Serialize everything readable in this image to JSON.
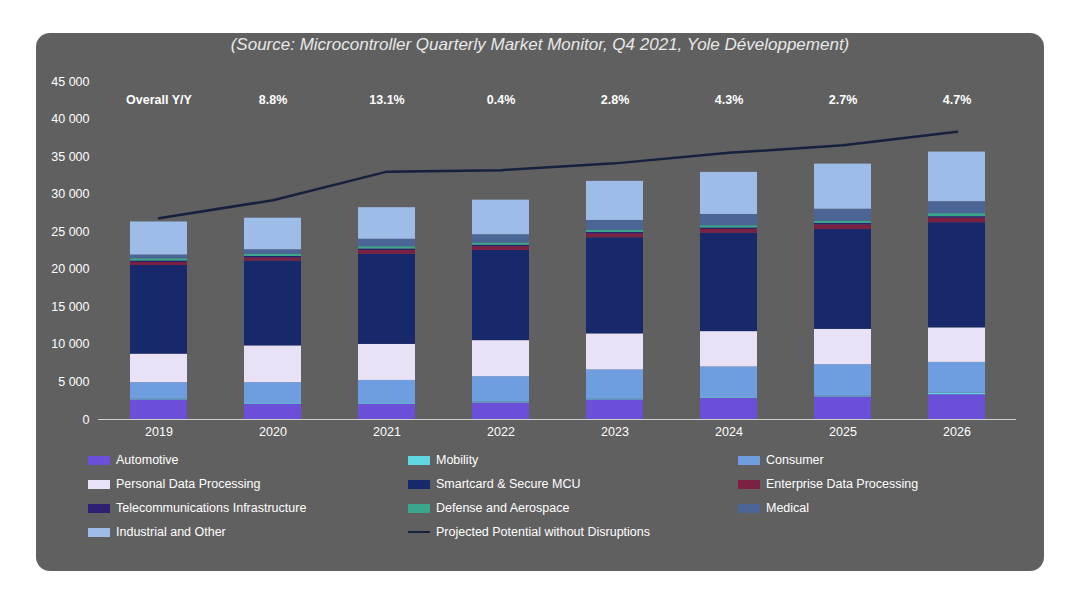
{
  "chart_data": {
    "type": "bar",
    "title": "(Source: Microcontroller Quarterly Market Monitor, Q4 2021, Yole Développement)",
    "stacked": true,
    "grid": false,
    "legend": "bottom",
    "categories": [
      "2019",
      "2020",
      "2021",
      "2022",
      "2023",
      "2024",
      "2025",
      "2026"
    ],
    "ylim": [
      0,
      45000
    ],
    "yticks": [
      0,
      {
        "value": 5000,
        "label": "5 000"
      },
      {
        "value": 10000,
        "label": "10 000"
      },
      {
        "value": 15000,
        "label": "15 000"
      },
      {
        "value": 20000,
        "label": "20 000"
      },
      {
        "value": 25000,
        "label": "25 000"
      },
      {
        "value": 30000,
        "label": "30 000"
      },
      {
        "value": 35000,
        "label": "35 000"
      },
      {
        "value": 40000,
        "label": "40 000"
      },
      {
        "value": 45000,
        "label": "45 000"
      }
    ],
    "annotations": [
      {
        "x": "2019",
        "text": "Overall Y/Y"
      },
      {
        "x": "2020",
        "text": "8.8%"
      },
      {
        "x": "2021",
        "text": "13.1%"
      },
      {
        "x": "2022",
        "text": "0.4%"
      },
      {
        "x": "2023",
        "text": "2.8%"
      },
      {
        "x": "2024",
        "text": "4.3%"
      },
      {
        "x": "2025",
        "text": "2.7%"
      },
      {
        "x": "2026",
        "text": "4.7%"
      }
    ],
    "series": [
      {
        "name": "Automotive",
        "color": "#6b4fd8",
        "values": [
          2600,
          2000,
          2000,
          2200,
          2600,
          2800,
          3000,
          3300
        ]
      },
      {
        "name": "Mobility",
        "color": "#5fd6e0",
        "values": [
          100,
          100,
          100,
          100,
          100,
          100,
          100,
          200
        ]
      },
      {
        "name": "Consumer",
        "color": "#6e9de0",
        "values": [
          2200,
          2800,
          3100,
          3400,
          3900,
          4100,
          4200,
          4100
        ]
      },
      {
        "name": "Personal Data Processing",
        "color": "#e9e1f5",
        "values": [
          3800,
          4900,
          4800,
          4800,
          4800,
          4700,
          4700,
          4600
        ]
      },
      {
        "name": "Smartcard & Secure MCU",
        "color": "#18296b",
        "values": [
          11800,
          11300,
          12000,
          12000,
          12800,
          13100,
          13300,
          14000
        ]
      },
      {
        "name": "Enterprise Data Processing",
        "color": "#7b2141",
        "values": [
          400,
          400,
          500,
          500,
          500,
          500,
          600,
          600
        ]
      },
      {
        "name": "Telecommunications Infrastructure",
        "color": "#2e1f70",
        "values": [
          200,
          200,
          200,
          200,
          200,
          200,
          200,
          200
        ]
      },
      {
        "name": "Defense and Aerospace",
        "color": "#3aa68c",
        "values": [
          300,
          300,
          300,
          300,
          300,
          300,
          300,
          400
        ]
      },
      {
        "name": "Medical",
        "color": "#4a6596",
        "values": [
          500,
          600,
          1000,
          1100,
          1300,
          1500,
          1600,
          1600
        ]
      },
      {
        "name": "Industrial and Other",
        "color": "#9dbde8",
        "values": [
          4400,
          4200,
          4200,
          4600,
          5200,
          5600,
          6000,
          6600
        ]
      },
      {
        "name": "Projected Potential without Disruptions",
        "type": "line",
        "color": "#17213d",
        "values": [
          26800,
          29200,
          33000,
          33200,
          34100,
          35500,
          36500,
          38300
        ]
      }
    ]
  }
}
